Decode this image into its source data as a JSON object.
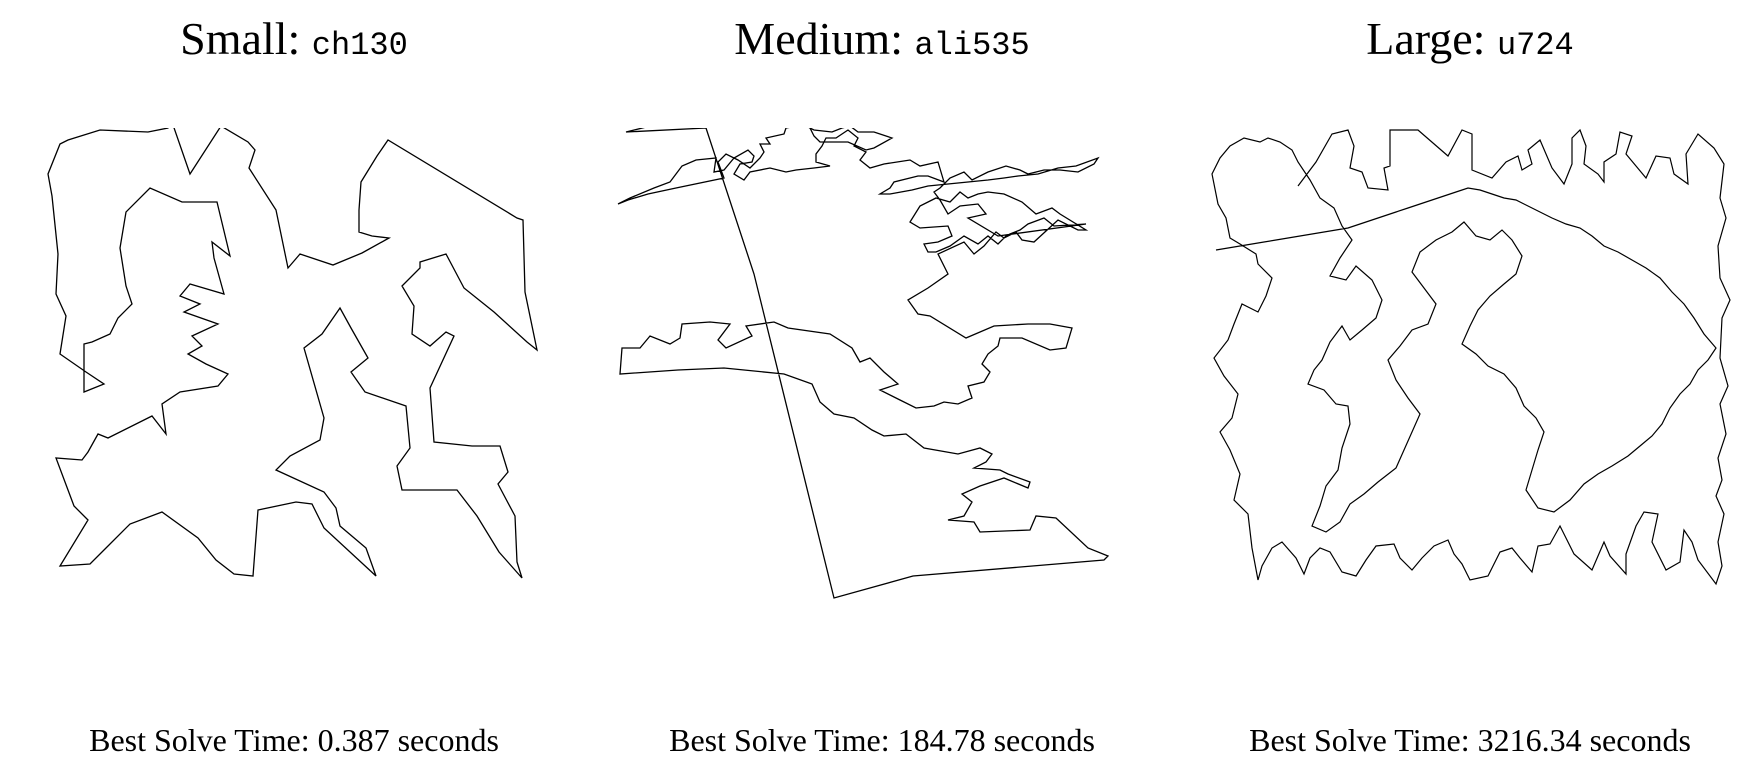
{
  "panels": [
    {
      "size_label": "Small",
      "separator": ":",
      "instance": "ch130",
      "caption": "Best Solve Time: 0.387 seconds"
    },
    {
      "size_label": "Medium",
      "separator": ":",
      "instance": "ali535",
      "caption": "Best Solve Time: 184.78 seconds"
    },
    {
      "size_label": "Large",
      "separator": ":",
      "instance": "u724",
      "caption": "Best Solve Time: 3216.34 seconds"
    }
  ],
  "stroke_color": "#000000"
}
